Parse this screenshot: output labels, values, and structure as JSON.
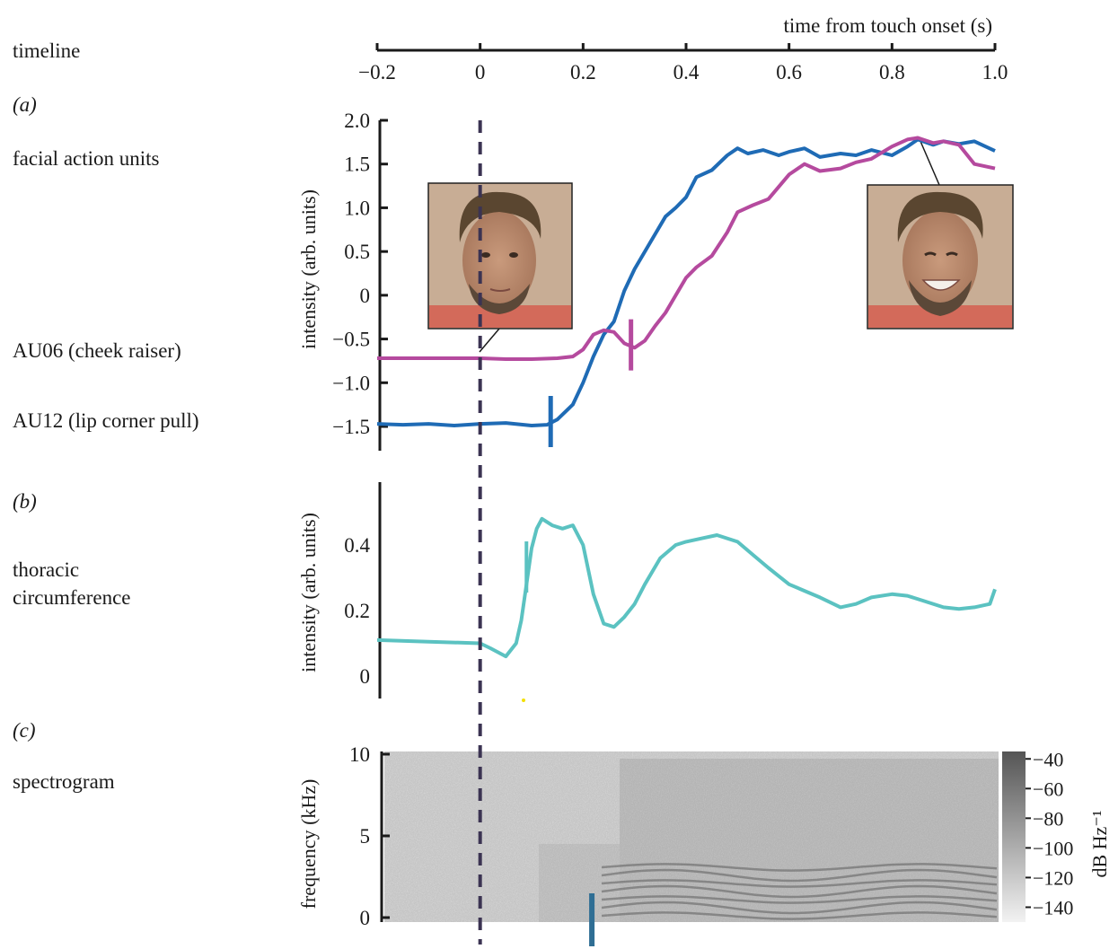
{
  "left_labels": {
    "timeline": "timeline",
    "panel_a": "(a)",
    "facial_action_units": "facial action units",
    "au06": "AU06 (cheek raiser)",
    "au12": "AU12 (lip corner pull)",
    "panel_b": "(b)",
    "thoracic_line1": "thoracic",
    "thoracic_line2": "circumference",
    "panel_c": "(c)",
    "spectrogram": "spectrogram"
  },
  "colors": {
    "au06": "#b54a9e",
    "au12": "#1f6bb5",
    "thoracic": "#5bc2c1",
    "onset_marker_c": "#2f6e94",
    "dashed": "#3b3352",
    "axis": "#1a1a1a"
  },
  "chart_data": [
    {
      "type": "line",
      "id": "timeline",
      "xlabel": "time from touch onset (s)",
      "xlim": [
        -0.2,
        1.0
      ],
      "xticks": [
        -0.2,
        0,
        0.2,
        0.4,
        0.6,
        0.8,
        1.0
      ],
      "xtick_labels": [
        "−0.2",
        "0",
        "0.2",
        "0.4",
        "0.6",
        "0.8",
        "1.0"
      ]
    },
    {
      "type": "line",
      "id": "facial_action_units",
      "ylabel": "intensity (arb. units)",
      "xlim": [
        -0.2,
        1.0
      ],
      "ylim": [
        -1.7,
        2.0
      ],
      "yticks": [
        2.0,
        1.5,
        1.0,
        0.5,
        0,
        -0.5,
        -1.0,
        -1.5
      ],
      "ytick_labels": [
        "2.0",
        "1.5",
        "1.0",
        "0.5",
        "0",
        "−0.5",
        "−1.0",
        "−1.5"
      ],
      "series": [
        {
          "id": "au12",
          "onset_marker_x": 0.137,
          "x": [
            -0.2,
            -0.15,
            -0.1,
            -0.05,
            0,
            0.05,
            0.1,
            0.13,
            0.15,
            0.18,
            0.2,
            0.22,
            0.24,
            0.26,
            0.28,
            0.3,
            0.33,
            0.36,
            0.38,
            0.4,
            0.42,
            0.45,
            0.48,
            0.5,
            0.52,
            0.55,
            0.58,
            0.6,
            0.63,
            0.66,
            0.7,
            0.73,
            0.76,
            0.8,
            0.83,
            0.85,
            0.88,
            0.9,
            0.93,
            0.96,
            1.0
          ],
          "y": [
            -1.47,
            -1.48,
            -1.47,
            -1.49,
            -1.47,
            -1.46,
            -1.49,
            -1.48,
            -1.42,
            -1.25,
            -1.0,
            -0.7,
            -0.45,
            -0.3,
            0.05,
            0.3,
            0.6,
            0.9,
            1.0,
            1.12,
            1.35,
            1.43,
            1.6,
            1.68,
            1.62,
            1.66,
            1.6,
            1.64,
            1.68,
            1.58,
            1.62,
            1.6,
            1.66,
            1.6,
            1.7,
            1.78,
            1.72,
            1.76,
            1.73,
            1.76,
            1.65
          ]
        },
        {
          "id": "au06",
          "onset_marker_x": 0.293,
          "x": [
            -0.2,
            -0.1,
            0,
            0.05,
            0.1,
            0.15,
            0.18,
            0.2,
            0.22,
            0.24,
            0.26,
            0.28,
            0.3,
            0.32,
            0.34,
            0.36,
            0.38,
            0.4,
            0.42,
            0.45,
            0.48,
            0.5,
            0.53,
            0.56,
            0.6,
            0.63,
            0.66,
            0.7,
            0.73,
            0.76,
            0.8,
            0.83,
            0.85,
            0.88,
            0.9,
            0.93,
            0.96,
            1.0
          ],
          "y": [
            -0.72,
            -0.72,
            -0.72,
            -0.73,
            -0.73,
            -0.72,
            -0.7,
            -0.62,
            -0.45,
            -0.4,
            -0.42,
            -0.55,
            -0.6,
            -0.52,
            -0.35,
            -0.2,
            0.0,
            0.2,
            0.32,
            0.45,
            0.72,
            0.95,
            1.03,
            1.1,
            1.38,
            1.5,
            1.42,
            1.45,
            1.52,
            1.56,
            1.7,
            1.78,
            1.8,
            1.74,
            1.76,
            1.72,
            1.5,
            1.45
          ]
        }
      ]
    },
    {
      "type": "line",
      "id": "thoracic",
      "ylabel": "intensity (arb. units)",
      "xlim": [
        -0.2,
        1.0
      ],
      "ylim": [
        -0.06,
        0.6
      ],
      "yticks": [
        0.4,
        0.2,
        0
      ],
      "ytick_labels": [
        "0.4",
        "0.2",
        "0"
      ],
      "series": [
        {
          "id": "thoracic",
          "onset_marker_x": 0.09,
          "x": [
            -0.2,
            -0.1,
            0,
            0.02,
            0.05,
            0.07,
            0.08,
            0.09,
            0.1,
            0.11,
            0.12,
            0.14,
            0.16,
            0.18,
            0.2,
            0.22,
            0.24,
            0.26,
            0.28,
            0.3,
            0.32,
            0.35,
            0.38,
            0.4,
            0.43,
            0.46,
            0.5,
            0.53,
            0.56,
            0.6,
            0.63,
            0.66,
            0.7,
            0.73,
            0.76,
            0.8,
            0.83,
            0.86,
            0.9,
            0.93,
            0.96,
            0.99,
            1.0
          ],
          "y": [
            0.11,
            0.105,
            0.1,
            0.085,
            0.06,
            0.1,
            0.17,
            0.28,
            0.39,
            0.45,
            0.48,
            0.46,
            0.45,
            0.46,
            0.4,
            0.25,
            0.16,
            0.15,
            0.18,
            0.22,
            0.28,
            0.36,
            0.4,
            0.41,
            0.42,
            0.43,
            0.41,
            0.37,
            0.33,
            0.28,
            0.26,
            0.24,
            0.21,
            0.22,
            0.24,
            0.25,
            0.245,
            0.23,
            0.21,
            0.205,
            0.21,
            0.22,
            0.265
          ]
        }
      ]
    },
    {
      "type": "heatmap",
      "id": "spectrogram",
      "ylabel": "frequency (kHz)",
      "xlim": [
        -0.2,
        1.0
      ],
      "ylim": [
        0,
        10
      ],
      "yticks": [
        10,
        5,
        0
      ],
      "ytick_labels": [
        "10",
        "5",
        "0"
      ],
      "onset_marker_x": 0.217,
      "colorbar_label": "dB Hz⁻¹",
      "colorbar_ticks": [
        -40,
        -60,
        -80,
        -100,
        -120,
        -140
      ],
      "colorbar_tick_labels": [
        "−40",
        "−60",
        "−80",
        "−100",
        "−120",
        "−140"
      ],
      "colorbar_range": [
        -150,
        -35
      ]
    }
  ]
}
